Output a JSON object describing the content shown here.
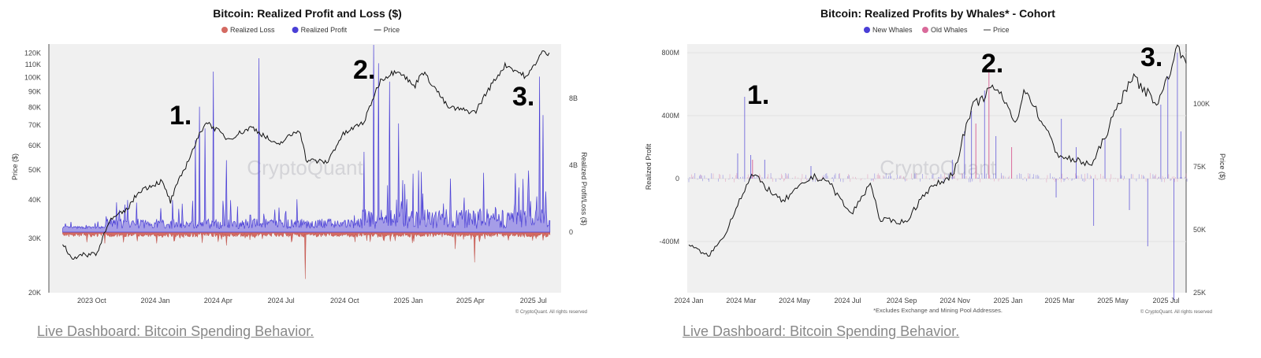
{
  "links": {
    "left": "Live Dashboard: Bitcoin Spending Behavior.",
    "right": "Live Dashboard: Bitcoin Spending Behavior."
  },
  "colors": {
    "loss": "#d46a62",
    "profit": "#4a3fd6",
    "profit_fill": "#9c93e6",
    "old_whales": "#d96a9a",
    "new_whales": "#4a3fd6",
    "price": "#111111",
    "plot_bg": "#f0f0f0"
  },
  "chart_data": [
    {
      "type": "area",
      "title": "Bitcoin: Realized Profit and Loss ($)",
      "legend": [
        "Realized Loss",
        "Realized Profit",
        "Price"
      ],
      "legend_placement": "top",
      "ylabel_left": "Price ($)",
      "ylabel_right": "Realized Profit/Loss ($)",
      "left_scale": "log",
      "left_ticks": [
        "20K",
        "30K",
        "40K",
        "50K",
        "60K",
        "70K",
        "80K",
        "90K",
        "100K",
        "110K",
        "120K"
      ],
      "left_tick_values": [
        20000,
        30000,
        40000,
        50000,
        60000,
        70000,
        80000,
        90000,
        100000,
        110000,
        120000
      ],
      "right_ticks": [
        "0",
        "4B",
        "8B"
      ],
      "right_tick_values": [
        0,
        4,
        8
      ],
      "xticks": [
        "2023 Oct",
        "2024 Jan",
        "2024 Apr",
        "2024 Jul",
        "2024 Oct",
        "2025 Jan",
        "2025 Apr",
        "2025 Jul"
      ],
      "xtick_dates": [
        "2023-10-01",
        "2024-01-01",
        "2024-04-01",
        "2024-07-01",
        "2024-10-01",
        "2025-01-01",
        "2025-04-01",
        "2025-07-01"
      ],
      "watermark": "CryptoQuant",
      "copyright": "© CryptoQuant. All rights reserved",
      "annotations": [
        "1.",
        "2.",
        "3."
      ],
      "price": [
        [
          "2023-08-20",
          29000
        ],
        [
          "2023-09-01",
          26000
        ],
        [
          "2023-10-10",
          27000
        ],
        [
          "2023-10-25",
          34000
        ],
        [
          "2023-11-20",
          37000
        ],
        [
          "2023-12-10",
          43000
        ],
        [
          "2024-01-10",
          46000
        ],
        [
          "2024-01-23",
          39500
        ],
        [
          "2024-02-15",
          52000
        ],
        [
          "2024-03-01",
          62000
        ],
        [
          "2024-03-14",
          72000
        ],
        [
          "2024-04-15",
          63000
        ],
        [
          "2024-05-20",
          69000
        ],
        [
          "2024-06-25",
          60000
        ],
        [
          "2024-07-28",
          68000
        ],
        [
          "2024-08-06",
          54000
        ],
        [
          "2024-09-06",
          53000
        ],
        [
          "2024-09-28",
          65000
        ],
        [
          "2024-10-30",
          72000
        ],
        [
          "2024-11-22",
          98000
        ],
        [
          "2024-12-17",
          106000
        ],
        [
          "2025-01-10",
          93000
        ],
        [
          "2025-01-21",
          105000
        ],
        [
          "2025-02-27",
          80000
        ],
        [
          "2025-04-08",
          77000
        ],
        [
          "2025-05-22",
          110000
        ],
        [
          "2025-06-22",
          100000
        ],
        [
          "2025-07-14",
          121000
        ],
        [
          "2025-07-25",
          118000
        ]
      ],
      "profit_spikes_B": [
        [
          "2024-02-28",
          5.5
        ],
        [
          "2024-03-05",
          7.5
        ],
        [
          "2024-03-13",
          6.2
        ],
        [
          "2024-03-25",
          9.6
        ],
        [
          "2024-04-13",
          4.3
        ],
        [
          "2024-05-30",
          10.4
        ],
        [
          "2024-10-29",
          4.8
        ],
        [
          "2024-11-12",
          11.2
        ],
        [
          "2024-11-19",
          10.1
        ],
        [
          "2024-12-05",
          9.0
        ],
        [
          "2024-12-18",
          6.5
        ],
        [
          "2025-01-20",
          3.6
        ],
        [
          "2025-03-03",
          3.2
        ],
        [
          "2025-07-10",
          9.3
        ],
        [
          "2025-07-15",
          7.0
        ]
      ],
      "loss_spikes_B": [
        [
          "2024-04-13",
          -0.8
        ],
        [
          "2024-08-05",
          -2.8
        ],
        [
          "2025-03-10",
          -1.0
        ],
        [
          "2025-04-07",
          -1.8
        ]
      ]
    },
    {
      "type": "bar",
      "title": "Bitcoin: Realized Profits by Whales* - Cohort",
      "legend": [
        "New Whales",
        "Old Whales",
        "Price"
      ],
      "legend_placement": "top",
      "ylabel_left": "Realized Profit",
      "ylabel_right": "Price ($)",
      "left_ticks": [
        "-400M",
        "0",
        "400M",
        "800M"
      ],
      "left_tick_values": [
        -400,
        0,
        400,
        800
      ],
      "right_ticks": [
        "25K",
        "50K",
        "75K",
        "100K"
      ],
      "right_tick_values": [
        25000,
        50000,
        75000,
        100000
      ],
      "xticks": [
        "2024 Jan",
        "2024 Mar",
        "2024 May",
        "2024 Jul",
        "2024 Sep",
        "2024 Nov",
        "2025 Jan",
        "2025 Mar",
        "2025 May",
        "2025 Jul"
      ],
      "xtick_dates": [
        "2024-01-01",
        "2024-03-01",
        "2024-05-01",
        "2024-07-01",
        "2024-09-01",
        "2024-11-01",
        "2025-01-01",
        "2025-03-01",
        "2025-05-01",
        "2025-07-01"
      ],
      "footnote": "*Excludes Exchange and Mining Pool Addresses.",
      "watermark": "CryptoQuant",
      "copyright": "© CryptoQuant. All rights reserved",
      "annotations": [
        "1.",
        "2.",
        "3."
      ],
      "price": [
        [
          "2024-01-01",
          44000
        ],
        [
          "2024-01-23",
          39500
        ],
        [
          "2024-02-10",
          47000
        ],
        [
          "2024-02-28",
          62000
        ],
        [
          "2024-03-14",
          72000
        ],
        [
          "2024-04-17",
          61000
        ],
        [
          "2024-05-21",
          71000
        ],
        [
          "2024-06-07",
          70000
        ],
        [
          "2024-07-05",
          56000
        ],
        [
          "2024-07-28",
          69000
        ],
        [
          "2024-08-06",
          54000
        ],
        [
          "2024-09-06",
          53000
        ],
        [
          "2024-09-28",
          65000
        ],
        [
          "2024-10-30",
          72000
        ],
        [
          "2024-11-13",
          90000
        ],
        [
          "2024-11-22",
          99000
        ],
        [
          "2024-12-17",
          107000
        ],
        [
          "2025-01-10",
          93000
        ],
        [
          "2025-01-21",
          106000
        ],
        [
          "2025-02-27",
          80000
        ],
        [
          "2025-03-11",
          78000
        ],
        [
          "2025-04-08",
          76000
        ],
        [
          "2025-05-22",
          111000
        ],
        [
          "2025-06-22",
          100000
        ],
        [
          "2025-07-14",
          122000
        ],
        [
          "2025-07-25",
          118000
        ]
      ],
      "new_whales_M": [
        [
          "2024-02-26",
          160
        ],
        [
          "2024-03-05",
          520
        ],
        [
          "2024-03-12",
          150
        ],
        [
          "2024-03-28",
          120
        ],
        [
          "2024-05-20",
          80
        ],
        [
          "2024-10-29",
          120
        ],
        [
          "2024-11-12",
          300
        ],
        [
          "2024-11-20",
          430
        ],
        [
          "2024-12-05",
          560
        ],
        [
          "2024-12-18",
          270
        ],
        [
          "2025-02-25",
          -120
        ],
        [
          "2025-03-03",
          380
        ],
        [
          "2025-03-20",
          200
        ],
        [
          "2025-04-09",
          -300
        ],
        [
          "2025-04-22",
          250
        ],
        [
          "2025-05-10",
          320
        ],
        [
          "2025-05-20",
          -200
        ],
        [
          "2025-06-10",
          -430
        ],
        [
          "2025-06-25",
          470
        ],
        [
          "2025-07-03",
          650
        ],
        [
          "2025-07-10",
          -770
        ],
        [
          "2025-07-14",
          800
        ],
        [
          "2025-07-18",
          300
        ]
      ],
      "old_whales_M": [
        [
          "2024-03-14",
          120
        ],
        [
          "2024-11-25",
          350
        ],
        [
          "2024-12-10",
          700
        ],
        [
          "2025-01-05",
          200
        ]
      ]
    }
  ]
}
